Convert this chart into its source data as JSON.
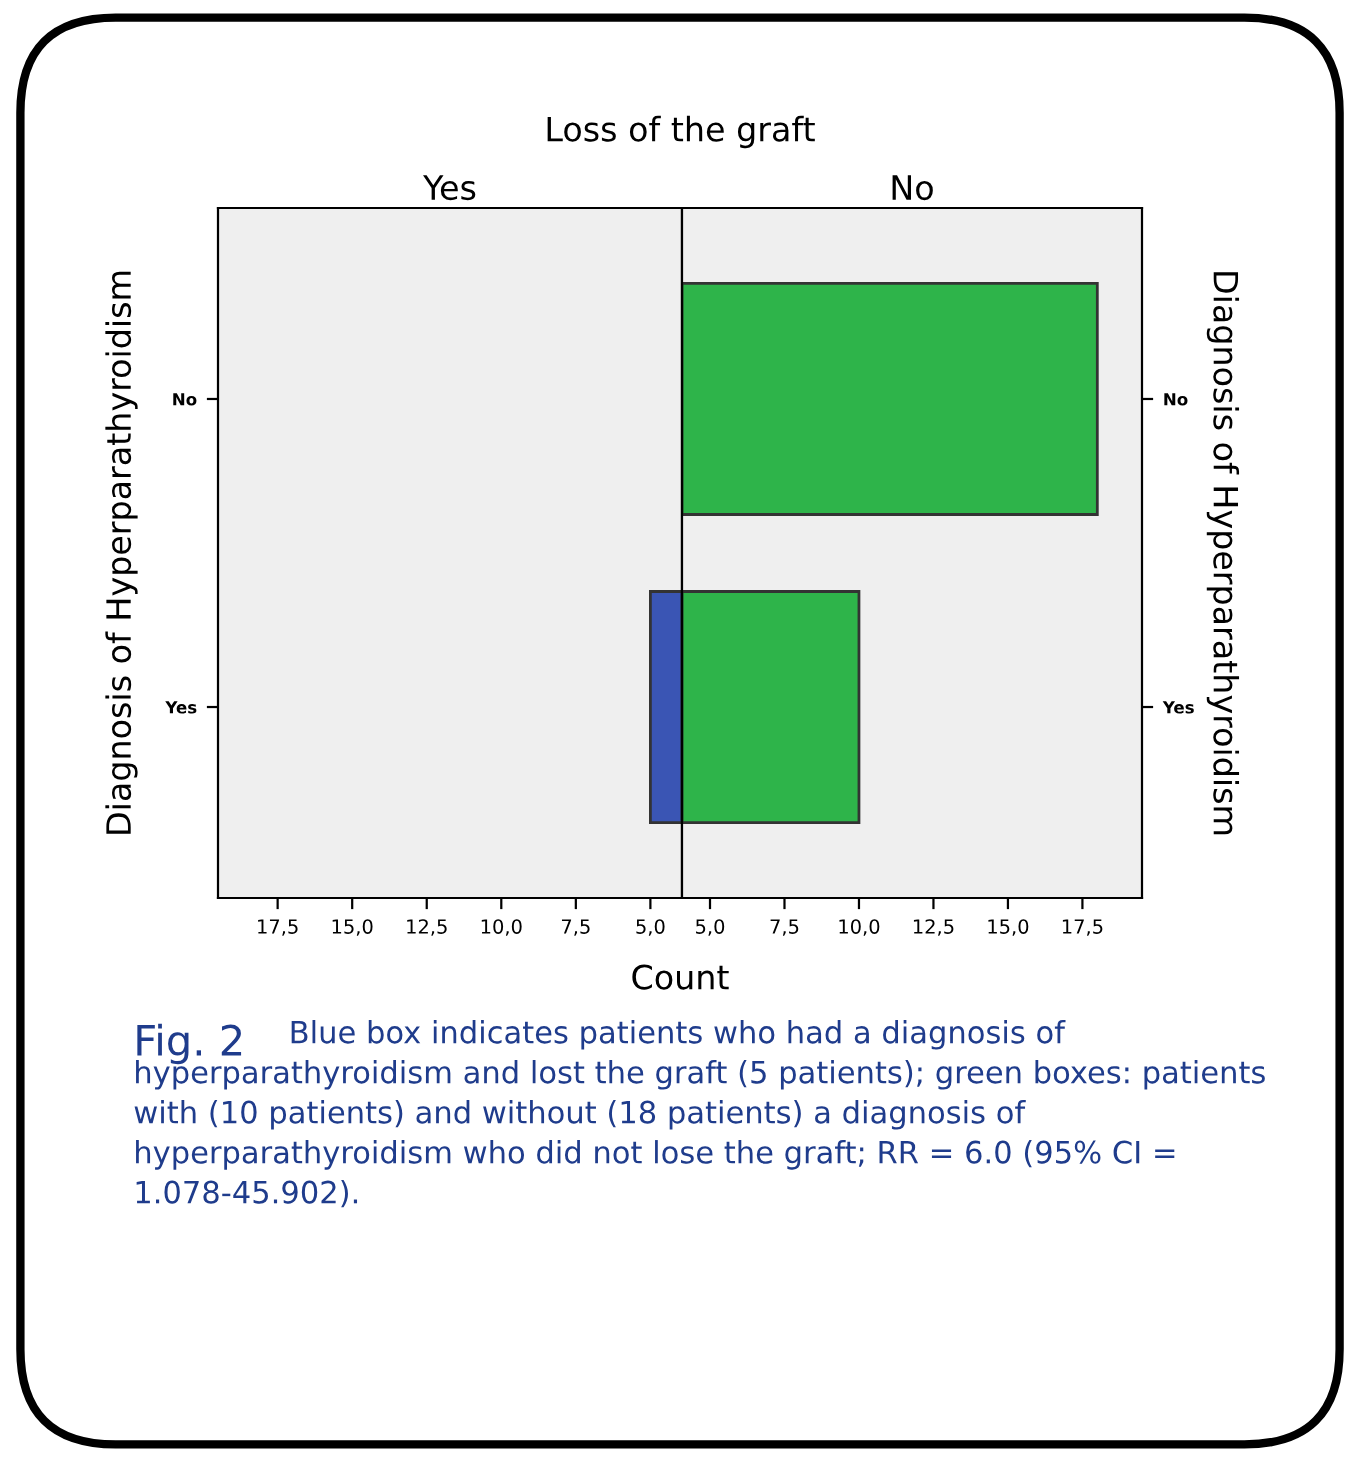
{
  "chart_data": [
    {
      "type": "bar",
      "orientation": "horizontal",
      "title": "Loss of the graft",
      "subtitle": "Yes",
      "xlabel": "Count",
      "ylabel": "Diagnosis of Hyperparathyroidism",
      "categories": [
        "No",
        "Yes"
      ],
      "series": [
        {
          "color": "#3a55b4",
          "values": [
            null,
            5
          ]
        }
      ],
      "xlim": [
        19.5,
        3.94
      ],
      "xticks": [
        {
          "value": 17.5,
          "label": "17,5"
        },
        {
          "value": 15,
          "label": "15,0"
        },
        {
          "value": 12.5,
          "label": "12,5"
        },
        {
          "value": 10,
          "label": "10,0"
        },
        {
          "value": 7.5,
          "label": "7,5"
        },
        {
          "value": 5,
          "label": "5,0"
        }
      ],
      "grid": false,
      "legend": false
    },
    {
      "type": "bar",
      "orientation": "horizontal",
      "subtitle": "No",
      "ylabel": "Diagnosis of Hyperparathyroidism",
      "categories": [
        "No",
        "Yes"
      ],
      "series": [
        {
          "color": "#2eb44a",
          "values": [
            18,
            10
          ]
        }
      ],
      "xlim": [
        4.06,
        19.5
      ],
      "xticks": [
        {
          "value": 5,
          "label": "5,0"
        },
        {
          "value": 7.5,
          "label": "7,5"
        },
        {
          "value": 10,
          "label": "10,0"
        },
        {
          "value": 12.5,
          "label": "12,5"
        },
        {
          "value": 15,
          "label": "15,0"
        },
        {
          "value": 17.5,
          "label": "17,5"
        }
      ],
      "grid": false,
      "legend": false,
      "annotations": [
        "Fig. 2",
        "Blue box indicates patients who had a diagnosis of hyperparathyroidism and lost the graft (5 patients); green boxes: patients with (10 patients) and without (18 patients) a diagnosis of hyperparathyroidism who did not lose the graft; RR = 6.0 (95% CI = 1.078-45.902)."
      ]
    }
  ]
}
